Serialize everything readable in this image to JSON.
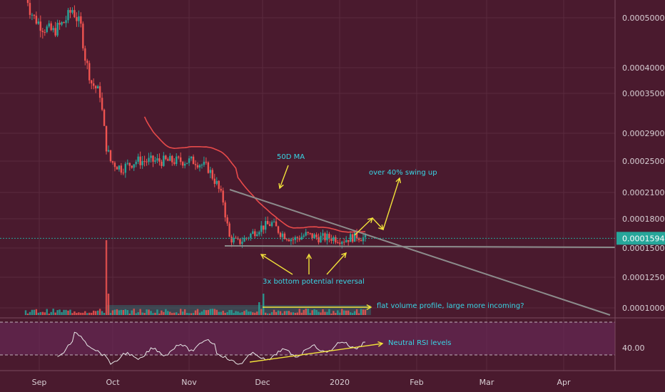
{
  "chart_data": {
    "type": "candlestick",
    "x_ticks": [
      "Sep",
      "Oct",
      "Nov",
      "Dec",
      "2020",
      "Feb",
      "Mar",
      "Apr"
    ],
    "y_ticks": [
      {
        "label": "0.0005000",
        "value": 0.0005
      },
      {
        "label": "0.0004000",
        "value": 0.0004
      },
      {
        "label": "0.0003500",
        "value": 0.00035
      },
      {
        "label": "0.0002900",
        "value": 0.00029
      },
      {
        "label": "0.0002500",
        "value": 0.00025
      },
      {
        "label": "0.0002100",
        "value": 0.00021
      },
      {
        "label": "0.0001800",
        "value": 0.00018
      },
      {
        "label": "0.0001500",
        "value": 0.00015
      },
      {
        "label": "0.0001250",
        "value": 0.000125
      },
      {
        "label": "0.0001000",
        "value": 0.0001
      }
    ],
    "y_scale": "log",
    "current_price": {
      "label": "0.0001594",
      "value": 0.0001594
    },
    "rsi": {
      "level_label": "40.00"
    },
    "annotations": [
      {
        "id": "ma",
        "text": "50D MA"
      },
      {
        "id": "swing",
        "text": "over 40% swing up"
      },
      {
        "id": "bottom",
        "text": "3x bottom potential reversal"
      },
      {
        "id": "volume",
        "text": "flat volume profile, large more incoming?"
      },
      {
        "id": "rsi",
        "text": "Neutral RSI levels"
      }
    ],
    "colors": {
      "background": "#4a1a2e",
      "up": "#26a69a",
      "down": "#ef5350",
      "ma": "#e84a4a",
      "trendline": "#8c8c8c",
      "arrow": "#f2e23a",
      "annotation_text": "#38d6e6",
      "rsi_band": "#6a2a5a"
    }
  }
}
